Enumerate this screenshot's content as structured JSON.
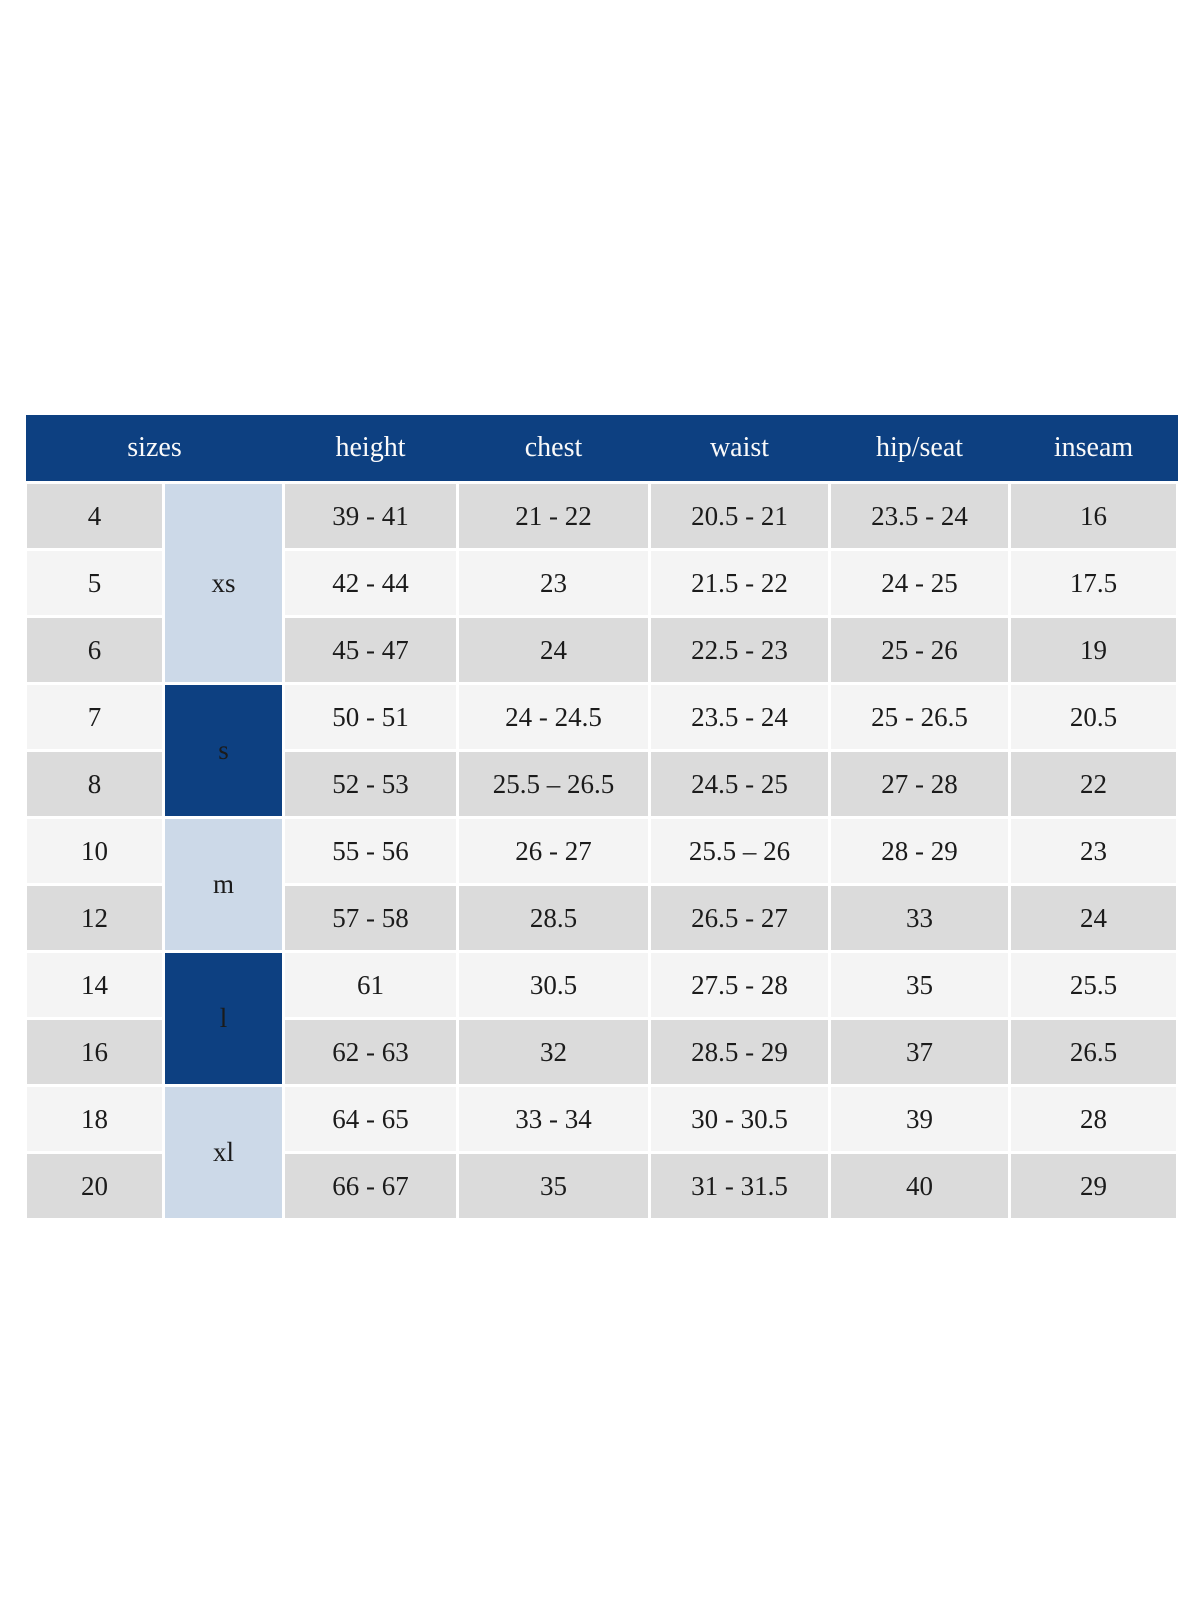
{
  "chart_data": {
    "type": "table",
    "columns": [
      "sizes",
      "height",
      "chest",
      "waist",
      "hip/seat",
      "inseam"
    ],
    "size_groups": [
      {
        "label": "xs",
        "shade": "light",
        "sizes": [
          "4",
          "5",
          "6"
        ]
      },
      {
        "label": "s",
        "shade": "dark",
        "sizes": [
          "7",
          "8"
        ]
      },
      {
        "label": "m",
        "shade": "light",
        "sizes": [
          "10",
          "12"
        ]
      },
      {
        "label": "l",
        "shade": "dark",
        "sizes": [
          "14",
          "16"
        ]
      },
      {
        "label": "xl",
        "shade": "light",
        "sizes": [
          "18",
          "20"
        ]
      }
    ],
    "rows": [
      {
        "size": "4",
        "group": "xs",
        "height": "39 - 41",
        "chest": "21 - 22",
        "waist": "20.5 - 21",
        "hip_seat": "23.5 - 24",
        "inseam": "16"
      },
      {
        "size": "5",
        "group": "xs",
        "height": "42 - 44",
        "chest": "23",
        "waist": "21.5 - 22",
        "hip_seat": "24 - 25",
        "inseam": "17.5"
      },
      {
        "size": "6",
        "group": "xs",
        "height": "45 - 47",
        "chest": "24",
        "waist": "22.5 - 23",
        "hip_seat": "25 - 26",
        "inseam": "19"
      },
      {
        "size": "7",
        "group": "s",
        "height": "50 - 51",
        "chest": "24 - 24.5",
        "waist": "23.5 - 24",
        "hip_seat": "25 - 26.5",
        "inseam": "20.5"
      },
      {
        "size": "8",
        "group": "s",
        "height": "52 - 53",
        "chest": "25.5 – 26.5",
        "waist": "24.5 - 25",
        "hip_seat": "27 - 28",
        "inseam": "22"
      },
      {
        "size": "10",
        "group": "m",
        "height": "55 - 56",
        "chest": "26 - 27",
        "waist": "25.5 – 26",
        "hip_seat": "28 - 29",
        "inseam": "23"
      },
      {
        "size": "12",
        "group": "m",
        "height": "57 - 58",
        "chest": "28.5",
        "waist": "26.5 - 27",
        "hip_seat": "33",
        "inseam": "24"
      },
      {
        "size": "14",
        "group": "l",
        "height": "61",
        "chest": "30.5",
        "waist": "27.5 - 28",
        "hip_seat": "35",
        "inseam": "25.5"
      },
      {
        "size": "16",
        "group": "l",
        "height": "62 - 63",
        "chest": "32",
        "waist": "28.5 - 29",
        "hip_seat": "37",
        "inseam": "26.5"
      },
      {
        "size": "18",
        "group": "xl",
        "height": "64 - 65",
        "chest": "33 - 34",
        "waist": "30 - 30.5",
        "hip_seat": "39",
        "inseam": "28"
      },
      {
        "size": "20",
        "group": "xl",
        "height": "66 - 67",
        "chest": "35",
        "waist": "31 - 31.5",
        "hip_seat": "40",
        "inseam": "29"
      }
    ]
  },
  "colors": {
    "header_bg": "#0d4081",
    "header_text": "#fafafa",
    "group_dark_bg": "#0d4081",
    "group_light_bg": "#ccd9e8",
    "row_even_bg": "#dbdbdb",
    "row_odd_bg": "#f4f4f4",
    "text": "#1b1b1b"
  }
}
